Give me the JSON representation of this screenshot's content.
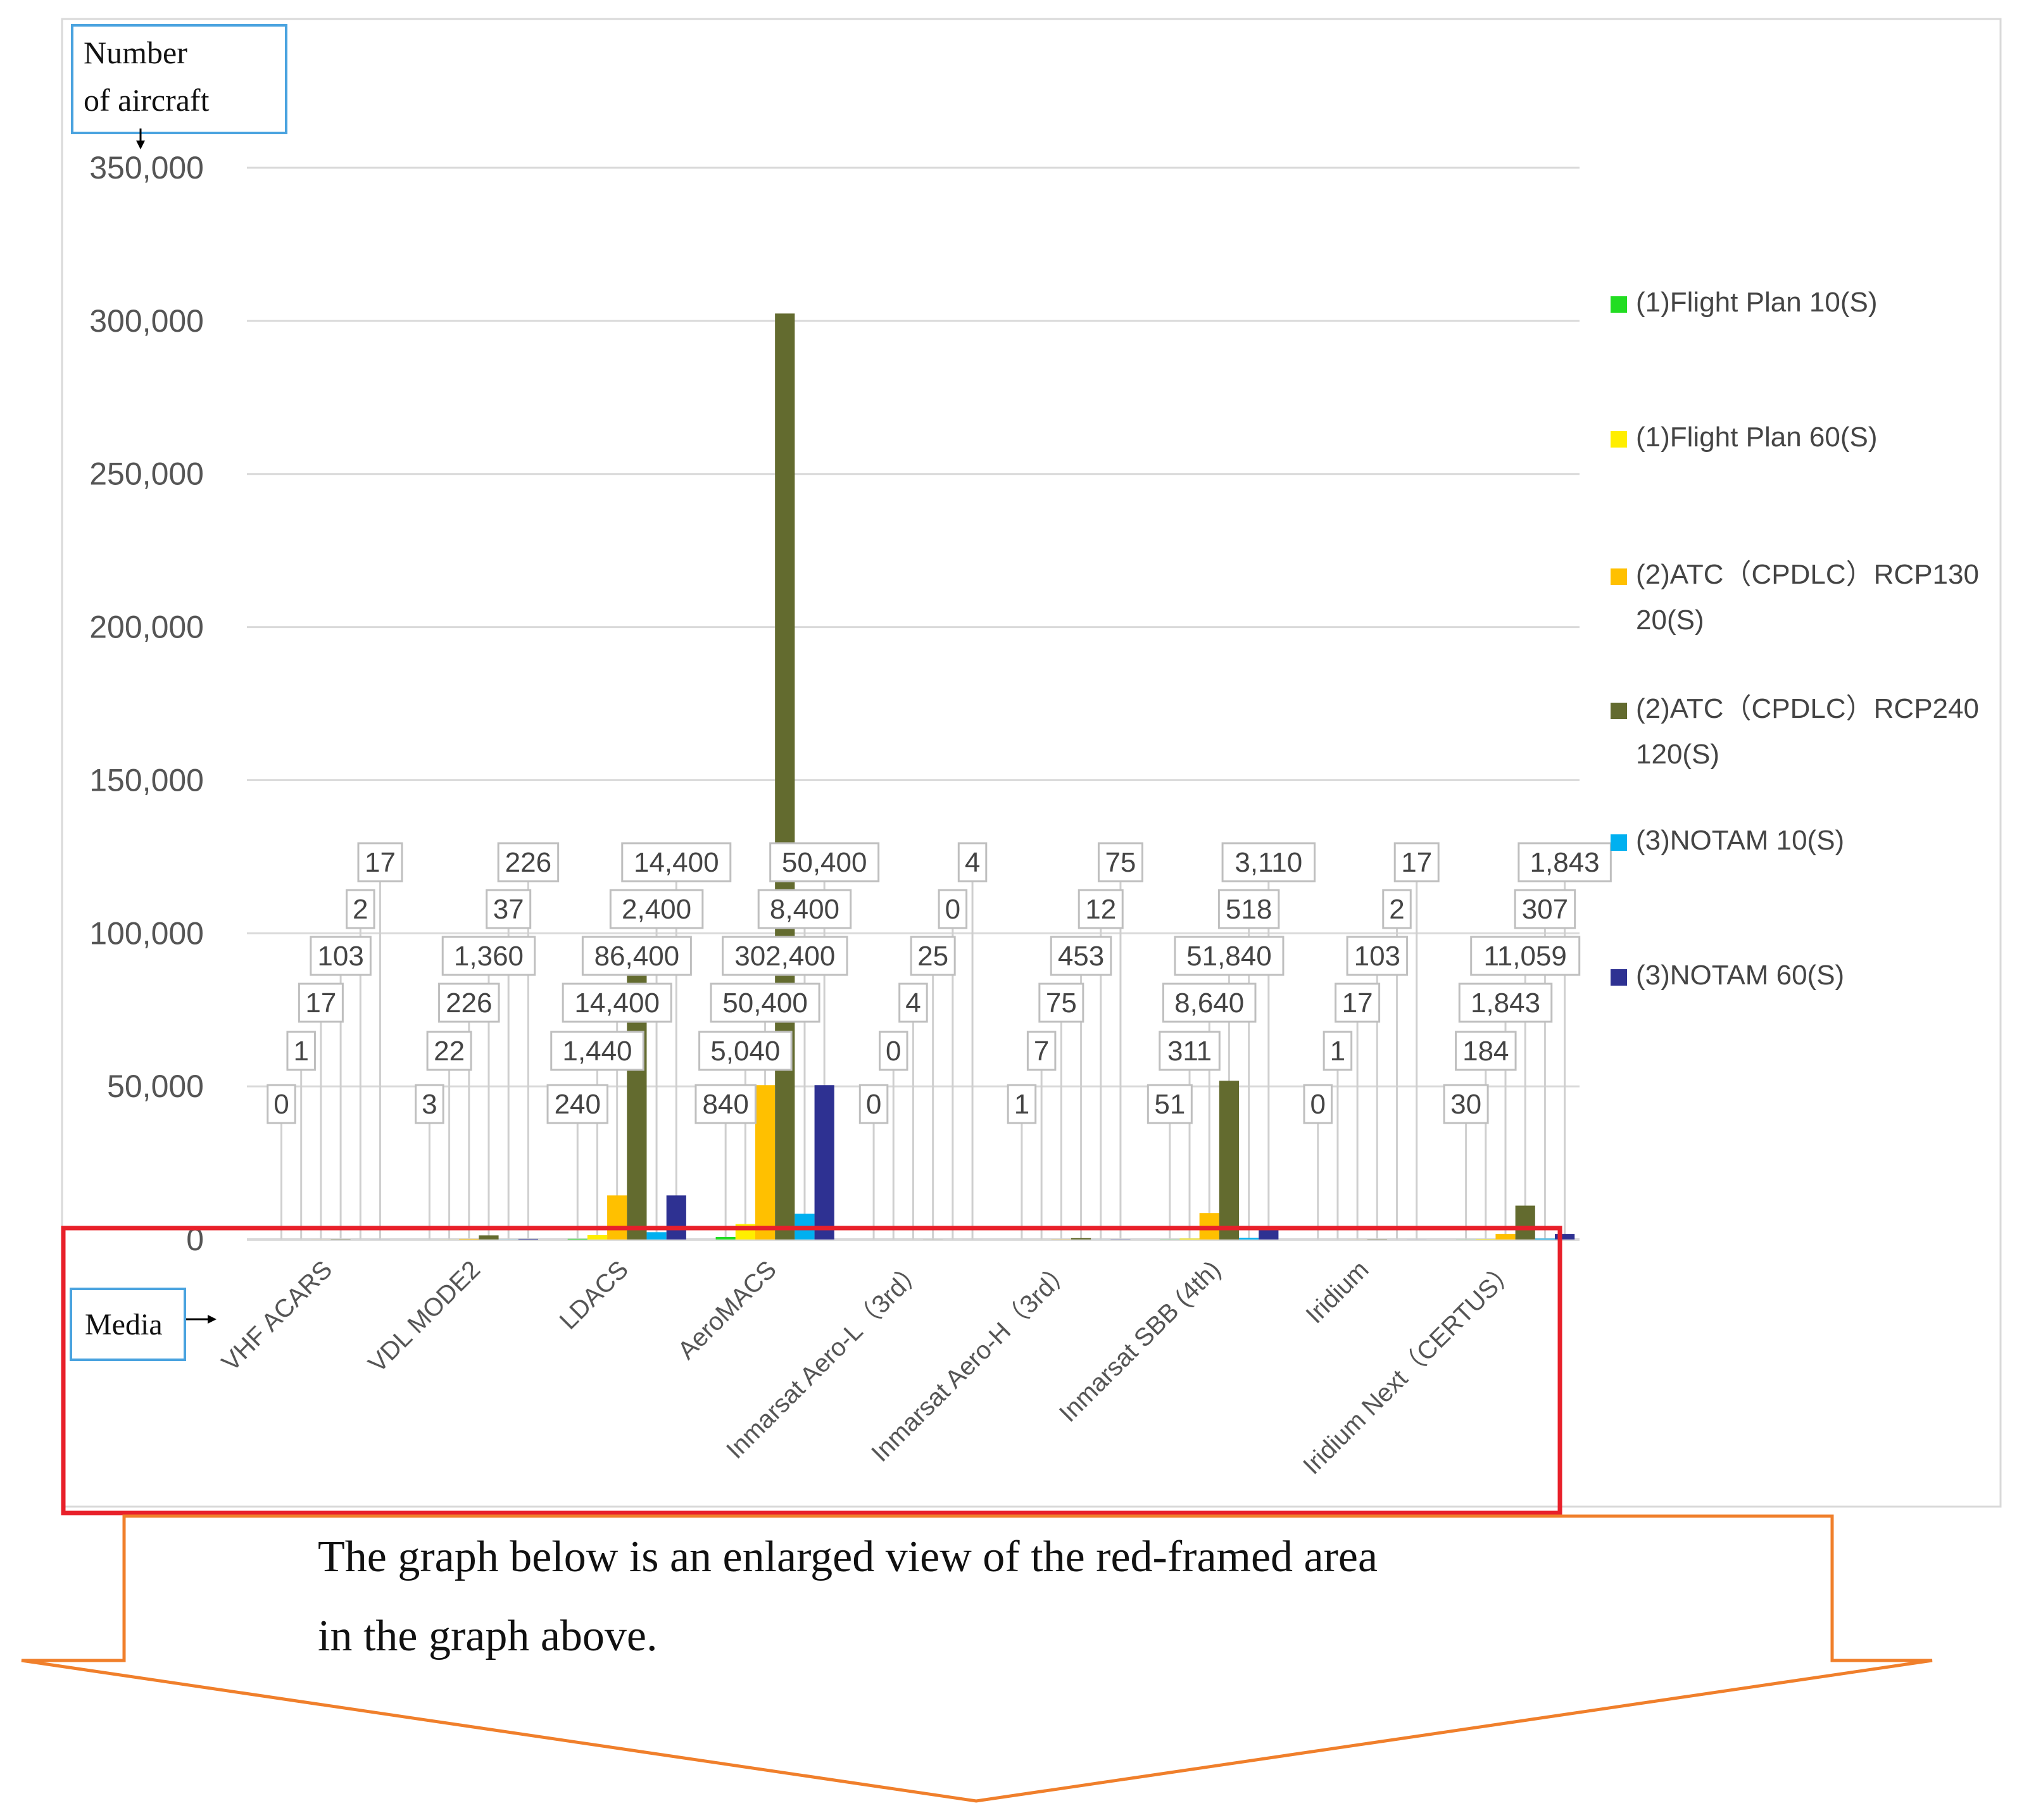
{
  "y_axis_box": {
    "line1": "Number",
    "line2": "of aircraft"
  },
  "x_axis_box": {
    "label": "Media"
  },
  "callout": {
    "line1": "The graph below is an enlarged view of the red-framed area",
    "line2": "in the graph above."
  },
  "colors": {
    "frame_red": "#e8202a",
    "callout_orange": "#f07f2b",
    "label_box_blue": "#4aa3df"
  },
  "chart_data": {
    "type": "bar",
    "xlabel": "Media",
    "ylabel": "Number of aircraft",
    "ylim": [
      0,
      350000
    ],
    "y_ticks": [
      0,
      50000,
      100000,
      150000,
      200000,
      250000,
      300000,
      350000
    ],
    "y_tick_labels": [
      "0",
      "50,000",
      "100,000",
      "150,000",
      "200,000",
      "250,000",
      "300,000",
      "350,000"
    ],
    "grid": true,
    "legend_position": "right",
    "categories": [
      "VHF ACARS",
      "VDL MODE2",
      "LDACS",
      "AeroMACS",
      "Inmarsat Aero-L（3rd）",
      "Inmarsat Aero-H（3rd）",
      "Inmarsat SBB (4th)",
      "Iridium",
      "Iridium Next（CERTUS）"
    ],
    "series": [
      {
        "name": "(1)Flight Plan 10(S)",
        "color": "#22dd22",
        "values": [
          0,
          3,
          240,
          840,
          0,
          1,
          51,
          0,
          30
        ],
        "labels": [
          "0",
          "3",
          "240",
          "840",
          "0",
          "1",
          "51",
          "0",
          "30"
        ]
      },
      {
        "name": "(1)Flight Plan 60(S)",
        "color": "#ffee00",
        "values": [
          1,
          22,
          1440,
          5040,
          0,
          7,
          311,
          1,
          184
        ],
        "labels": [
          "1",
          "22",
          "1,440",
          "5,040",
          "0",
          "7",
          "311",
          "1",
          "184"
        ]
      },
      {
        "name": "(2)ATC（CPDLC）RCP130 20(S)",
        "color": "#ffc000",
        "values": [
          17,
          226,
          14400,
          50400,
          4,
          75,
          8640,
          17,
          1843
        ],
        "labels": [
          "17",
          "226",
          "14,400",
          "50,400",
          "4",
          "75",
          "8,640",
          "17",
          "1,843"
        ]
      },
      {
        "name": "(2)ATC（CPDLC）RCP240 120(S)",
        "color": "#636b2f",
        "values": [
          103,
          1360,
          86400,
          302400,
          25,
          453,
          51840,
          103,
          11059
        ],
        "labels": [
          "103",
          "1,360",
          "86,400",
          "302,400",
          "25",
          "453",
          "51,840",
          "103",
          "11,059"
        ]
      },
      {
        "name": "(3)NOTAM 10(S)",
        "color": "#00b0f0",
        "values": [
          2,
          37,
          2400,
          8400,
          0,
          12,
          518,
          2,
          307
        ],
        "labels": [
          "2",
          "37",
          "2,400",
          "8,400",
          "0",
          "12",
          "518",
          "2",
          "307"
        ]
      },
      {
        "name": "(3)NOTAM 60(S)",
        "color": "#2e3192",
        "values": [
          17,
          226,
          14400,
          50400,
          4,
          75,
          3110,
          17,
          1843
        ],
        "labels": [
          "17",
          "226",
          "14,400",
          "50,400",
          "4",
          "75",
          "3,110",
          "17",
          "1,843"
        ]
      }
    ]
  }
}
